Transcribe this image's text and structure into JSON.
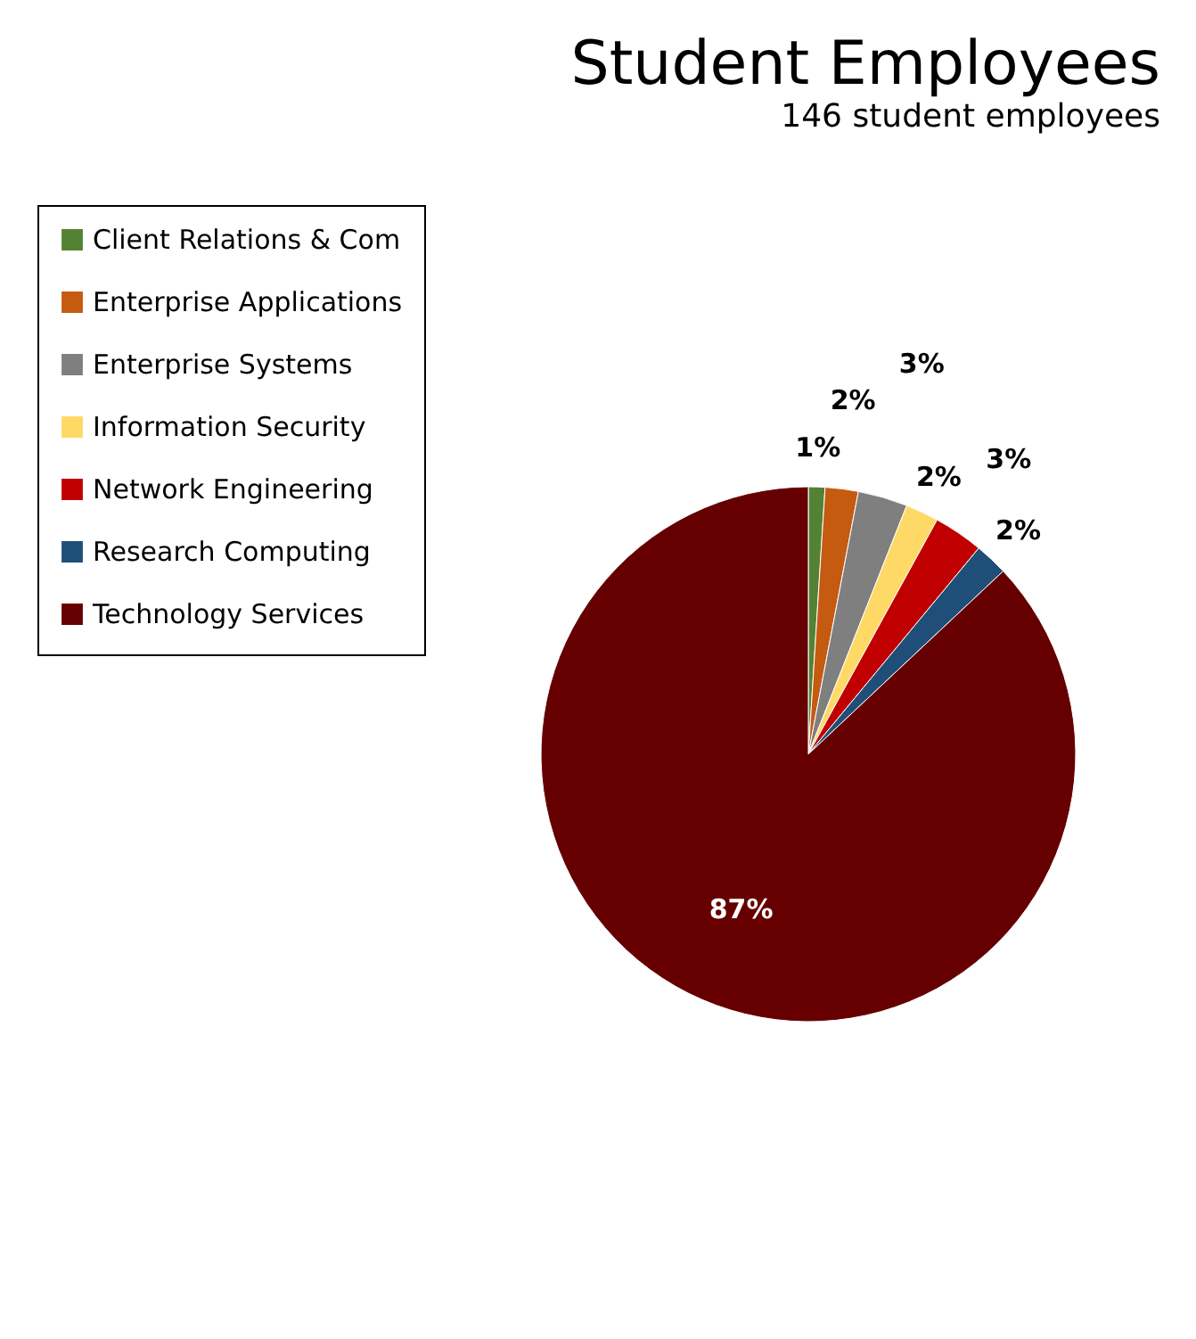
{
  "chart_data": {
    "type": "pie",
    "title": "Student Employees",
    "subtitle": "146 student employees",
    "categories": [
      "Client Relations & Com",
      "Enterprise Applications",
      "Enterprise Systems",
      "Information Security",
      "Network Engineering",
      "Research Computing",
      "Technology Services"
    ],
    "values": [
      1,
      2,
      3,
      2,
      3,
      2,
      87
    ],
    "value_labels": [
      "1%",
      "2%",
      "3%",
      "2%",
      "3%",
      "2%",
      "87%"
    ],
    "colors": [
      "#548235",
      "#c55a11",
      "#7f7f7f",
      "#ffd966",
      "#c00000",
      "#1f4e79",
      "#660000"
    ],
    "legend": "left"
  }
}
